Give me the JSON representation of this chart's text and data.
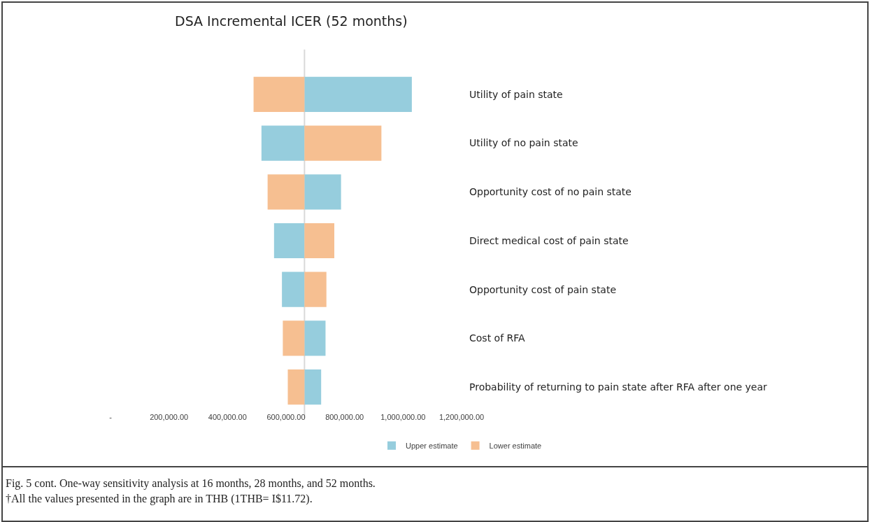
{
  "chart_data": {
    "type": "bar",
    "orientation": "horizontal",
    "title": "DSA Incremental ICER (52 months)",
    "categories": [
      "Utility of pain state",
      "Utility of no pain state",
      "Opportunity cost of no pain state",
      "Direct medical cost of pain state",
      "Opportunity cost of pain state",
      "Cost of RFA",
      "Probability of returning to pain state after RFA after one year"
    ],
    "series": [
      {
        "name": "Upper estimate",
        "color": "#96cddd",
        "base": [
          663000,
          663000,
          663000,
          663000,
          663000,
          663000,
          663000
        ],
        "values": [
          367000,
          -147000,
          125000,
          -104000,
          -77000,
          72000,
          57000
        ]
      },
      {
        "name": "Lower estimate",
        "color": "#f6bf91",
        "base": [
          663000,
          663000,
          663000,
          663000,
          663000,
          663000,
          663000
        ],
        "values": [
          -174000,
          263000,
          -126000,
          102000,
          75000,
          -74000,
          -57000
        ]
      }
    ],
    "xlim": [
      0,
      1200000
    ],
    "xticks": [
      {
        "value": 0,
        "label": "-"
      },
      {
        "value": 200000,
        "label": "200,000.00"
      },
      {
        "value": 400000,
        "label": "400,000.00"
      },
      {
        "value": 600000,
        "label": "600,000.00"
      },
      {
        "value": 800000,
        "label": "800,000.00"
      },
      {
        "value": 1000000,
        "label": "1,000,000.00"
      },
      {
        "value": 1200000,
        "label": "1,200,000.00"
      }
    ],
    "ref_lines": [
      {
        "axis": "x",
        "value": 663000,
        "color": "#d9d9d9"
      }
    ],
    "grid": false,
    "legend": "bottom",
    "annotations": [
      "Fig. 5 cont. One-way sensitivity analysis at 16 months, 28 months, and 52 months.",
      "†All the values presented in the graph are in THB (1THB= I$11.72)."
    ]
  }
}
